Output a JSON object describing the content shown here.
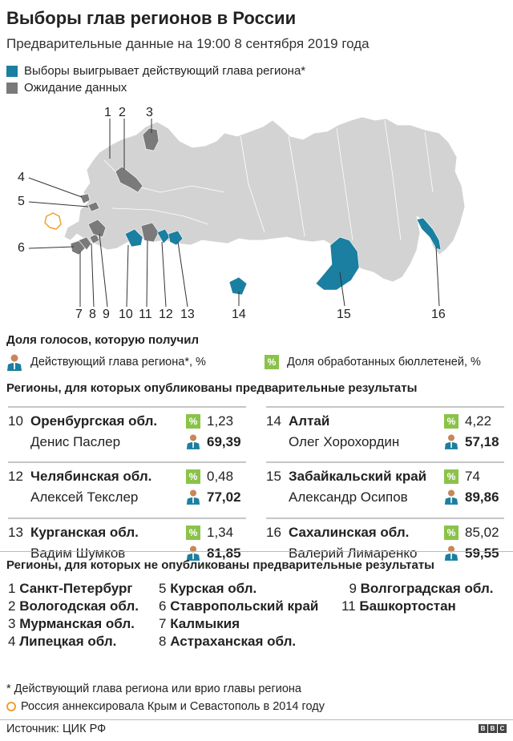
{
  "title": "Выборы глав регионов в России",
  "subtitle": "Предварительные данные на 19:00 8 сентября 2019 года",
  "legend": {
    "incumbent_label": "Выборы выигрывает действующий глава региона*",
    "waiting_label": "Ожидание данных",
    "incumbent_color": "#1a7fa0",
    "waiting_color": "#7a7a7a",
    "base_color": "#d3d3d3",
    "crimea_color": "#f0a030"
  },
  "map_numbers": [
    "1",
    "2",
    "3",
    "4",
    "5",
    "6",
    "7",
    "8",
    "9",
    "10",
    "11",
    "12",
    "13",
    "14",
    "15",
    "16"
  ],
  "vote_share": {
    "heading": "Доля голосов, которую получил",
    "incumbent_label": "Действующий глава региона*, %",
    "processed_label": "Доля обработанных бюллетеней, %",
    "pct_symbol": "%"
  },
  "published": {
    "heading": "Регионы, для которых опубликованы предварительные результаты",
    "cards": [
      {
        "idx": "10",
        "region": "Оренбургская обл.",
        "person": "Денис Паслер",
        "processed": "1,23",
        "votes": "69,39"
      },
      {
        "idx": "14",
        "region": "Алтай",
        "person": "Олег Хорохордин",
        "processed": "4,22",
        "votes": "57,18"
      },
      {
        "idx": "12",
        "region": "Челябинская обл.",
        "person": "Алексей Текслер",
        "processed": "0,48",
        "votes": "77,02"
      },
      {
        "idx": "15",
        "region": "Забайкальский край",
        "person": "Александр Осипов",
        "processed": "74",
        "votes": "89,86"
      },
      {
        "idx": "13",
        "region": "Курганская обл.",
        "person": "Вадим Шумков",
        "processed": "1,34",
        "votes": "81,85"
      },
      {
        "idx": "16",
        "region": "Сахалинская обл.",
        "person": "Валерий Лимаренко",
        "processed": "85,02",
        "votes": "59,55"
      }
    ]
  },
  "not_published": {
    "heading": "Регионы, для которых не опубликованы предварительные результаты",
    "col1": [
      {
        "idx": "1",
        "name": "Санкт-Петербург"
      },
      {
        "idx": "2",
        "name": "Вологодская обл."
      },
      {
        "idx": "3",
        "name": "Мурманская обл."
      },
      {
        "idx": "4",
        "name": "Липецкая обл."
      }
    ],
    "col2": [
      {
        "idx": "5",
        "name": "Курская обл."
      },
      {
        "idx": "6",
        "name": "Ставропольский край"
      },
      {
        "idx": "7",
        "name": "Калмыкия"
      },
      {
        "idx": "8",
        "name": "Астраханская обл."
      }
    ],
    "col3": [
      {
        "idx": "9",
        "name": "Волгоградская обл."
      },
      {
        "idx": "11",
        "name": "Башкортостан"
      }
    ]
  },
  "footnotes": {
    "star": "* Действующий глава региона или врио главы региона",
    "crimea": "Россия аннексировала Крым и Севастополь в 2014 году"
  },
  "source": "Источник: ЦИК РФ",
  "logo": "BBC"
}
